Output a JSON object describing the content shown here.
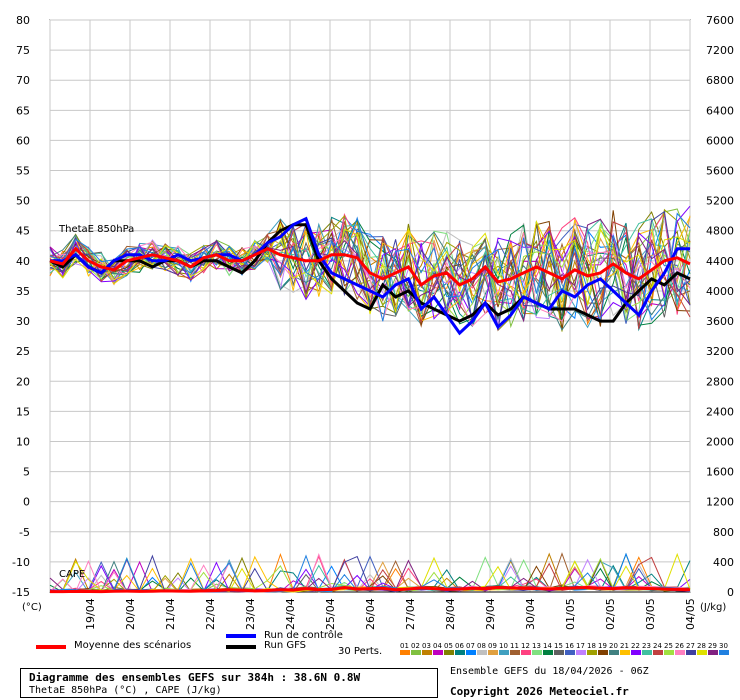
{
  "chart_data": {
    "type": "line",
    "x_dates": [
      "19/04",
      "20/04",
      "21/04",
      "22/04",
      "23/04",
      "24/04",
      "25/04",
      "26/04",
      "27/04",
      "28/04",
      "29/04",
      "30/04",
      "01/05",
      "02/05",
      "03/05",
      "04/05"
    ],
    "y_left": {
      "unit": "(°C)",
      "min": -15,
      "max": 80,
      "ticks": [
        -15,
        -10,
        -5,
        0,
        5,
        10,
        15,
        20,
        25,
        30,
        35,
        40,
        45,
        50,
        55,
        60,
        65,
        70,
        75,
        80
      ]
    },
    "y_right": {
      "unit": "(J/kg)",
      "min": 0,
      "max": 7600,
      "ticks": [
        0,
        400,
        800,
        1200,
        1600,
        2000,
        2400,
        2800,
        3200,
        3600,
        4000,
        4400,
        4800,
        5200,
        5600,
        6000,
        6400,
        6800,
        7200,
        7600
      ]
    },
    "panel_labels": {
      "theta": "ThetaE 850hPa",
      "cape": "CAPE"
    },
    "theta_mean": [
      40,
      39.5,
      42,
      40,
      39,
      38.5,
      40,
      40.5,
      41,
      40.5,
      40,
      39,
      40.5,
      41,
      40,
      40,
      41,
      42,
      41,
      40.5,
      40,
      40,
      41,
      41,
      40.5,
      38,
      37,
      38,
      39,
      36,
      37.5,
      38,
      36,
      37,
      39,
      36.5,
      37,
      38,
      39,
      38,
      37,
      38.5,
      37.5,
      38,
      39.5,
      38,
      37,
      38.5,
      40,
      40.5,
      39.5
    ],
    "theta_control": [
      40,
      40,
      41,
      39,
      38,
      40,
      41,
      41,
      40,
      40,
      41,
      40,
      40.5,
      41,
      41,
      40,
      41,
      43,
      44,
      46,
      47,
      41,
      38,
      37,
      36,
      35,
      34,
      36,
      37,
      32,
      34,
      31,
      28,
      30,
      33,
      29,
      31,
      34,
      33,
      32,
      35,
      34,
      36,
      37,
      35,
      33,
      31,
      35,
      38,
      42,
      42
    ],
    "theta_gfs": [
      40,
      39,
      41,
      39,
      38,
      40,
      40,
      40,
      39,
      40,
      40,
      39,
      40,
      40,
      39,
      38,
      40,
      43,
      45,
      46,
      46,
      40,
      37,
      35,
      33,
      32,
      36,
      34,
      35,
      33,
      32,
      31,
      30,
      31,
      33,
      31,
      32,
      34,
      33,
      32,
      32,
      32,
      31,
      30,
      30,
      33,
      35,
      37,
      36,
      38,
      37
    ],
    "cape_mean": [
      5,
      5,
      8,
      6,
      5,
      10,
      12,
      8,
      10,
      15,
      12,
      10,
      15,
      20,
      30,
      25,
      15,
      20,
      30,
      25,
      45,
      30,
      35,
      60,
      40,
      45,
      50,
      30,
      40,
      55,
      45,
      35,
      40,
      50,
      45,
      60,
      55,
      50,
      45,
      40,
      50,
      55,
      60,
      50,
      45,
      55,
      50,
      45,
      40,
      35,
      30
    ],
    "legend": {
      "mean_label": "Moyenne des scénarios",
      "control_label": "Run de contrôle",
      "gfs_label": "Run GFS",
      "perts_label": "30 Perts.",
      "pert_ids": [
        "01",
        "02",
        "03",
        "04",
        "05",
        "06",
        "07",
        "08",
        "09",
        "10",
        "11",
        "12",
        "13",
        "14",
        "15",
        "16",
        "17",
        "18",
        "19",
        "20",
        "21",
        "22",
        "23",
        "24",
        "25",
        "26",
        "27",
        "28",
        "29",
        "30"
      ]
    },
    "colors": {
      "mean": "#ff0000",
      "control": "#0000ff",
      "gfs": "#000000",
      "perts": [
        "#ff8000",
        "#80c040",
        "#c08000",
        "#c000c0",
        "#808000",
        "#008080",
        "#0080ff",
        "#c0c0c0",
        "#e0a040",
        "#40a0c0",
        "#a06030",
        "#ff4080",
        "#80e080",
        "#008040",
        "#606060",
        "#4060c0",
        "#c080ff",
        "#a0a000",
        "#804000",
        "#408080",
        "#ffc000",
        "#8000ff",
        "#40c0a0",
        "#c04040",
        "#a0e040",
        "#ff80c0",
        "#4040a0",
        "#e0e000",
        "#802080",
        "#2080e0"
      ]
    }
  },
  "info": {
    "title": "Diagramme des ensembles GEFS sur 384h : 38.6N 0.8W",
    "subtitle": "ThetaE 850hPa (°C) , CAPE (J/kg)",
    "run": "Ensemble GEFS du 18/04/2026 - 06Z",
    "copyright": "Copyright 2026 Meteociel.fr"
  }
}
